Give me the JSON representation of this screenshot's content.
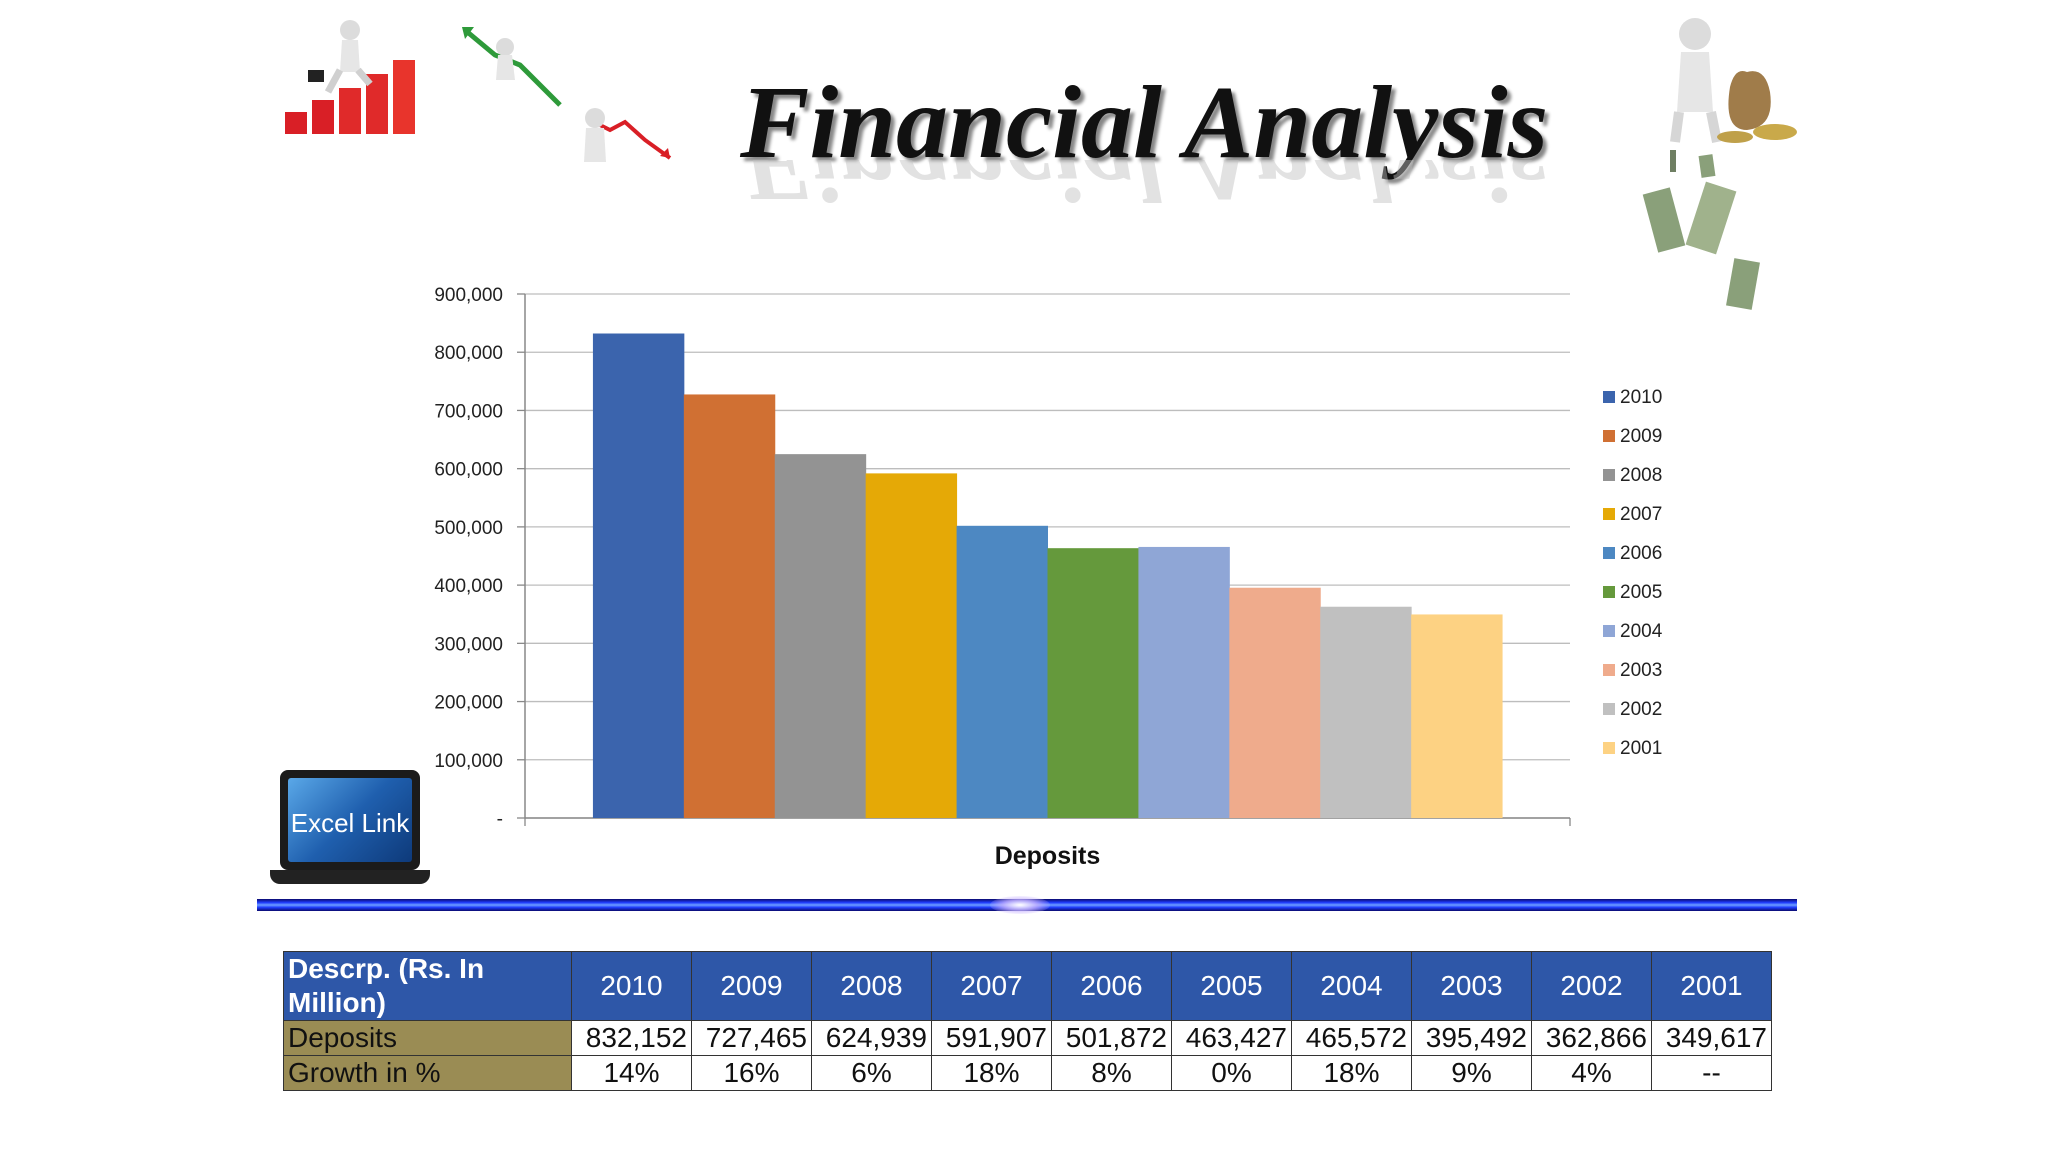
{
  "slide": {
    "title": "Financial Analysis",
    "excel_link_label": "Excel Link"
  },
  "chart_data": {
    "type": "bar",
    "xlabel": "Deposits",
    "ylabel": "",
    "ylim": [
      0,
      900000
    ],
    "yticks": [
      "-",
      "100,000",
      "200,000",
      "300,000",
      "400,000",
      "500,000",
      "600,000",
      "700,000",
      "800,000",
      "900,000"
    ],
    "grid": true,
    "legend_position": "right",
    "series": [
      {
        "name": "2010",
        "value": 832152,
        "color": "#3b64ad"
      },
      {
        "name": "2009",
        "value": 727465,
        "color": "#d07033"
      },
      {
        "name": "2008",
        "value": 624939,
        "color": "#939393"
      },
      {
        "name": "2007",
        "value": 591907,
        "color": "#e5a906"
      },
      {
        "name": "2006",
        "value": 501872,
        "color": "#4d88c2"
      },
      {
        "name": "2005",
        "value": 463427,
        "color": "#65993c"
      },
      {
        "name": "2004",
        "value": 465572,
        "color": "#8fa6d6"
      },
      {
        "name": "2003",
        "value": 395492,
        "color": "#efab8c"
      },
      {
        "name": "2002",
        "value": 362866,
        "color": "#c0c0c0"
      },
      {
        "name": "2001",
        "value": 349617,
        "color": "#fdd283"
      }
    ]
  },
  "table": {
    "header_label": "Descrp. (Rs. In Million)",
    "years": [
      "2010",
      "2009",
      "2008",
      "2007",
      "2006",
      "2005",
      "2004",
      "2003",
      "2002",
      "2001"
    ],
    "rows": [
      {
        "label": "Deposits",
        "values": [
          "832,152",
          "727,465",
          "624,939",
          "591,907",
          "501,872",
          "463,427",
          "465,572",
          "395,492",
          "362,866",
          "349,617"
        ]
      },
      {
        "label": "Growth in %",
        "values": [
          "14%",
          "16%",
          "6%",
          "18%",
          "8%",
          "0%",
          "18%",
          "9%",
          "4%",
          "--"
        ]
      }
    ]
  },
  "icons": {
    "top_left_1": "climbing-bar-chart-figure-icon",
    "top_left_2": "falling-arrow-figure-icon",
    "top_left_3": "declining-line-figure-icon",
    "top_right": "money-bag-figure-icon",
    "falling_bills": "falling-banknotes-icon",
    "laptop": "laptop-icon"
  }
}
